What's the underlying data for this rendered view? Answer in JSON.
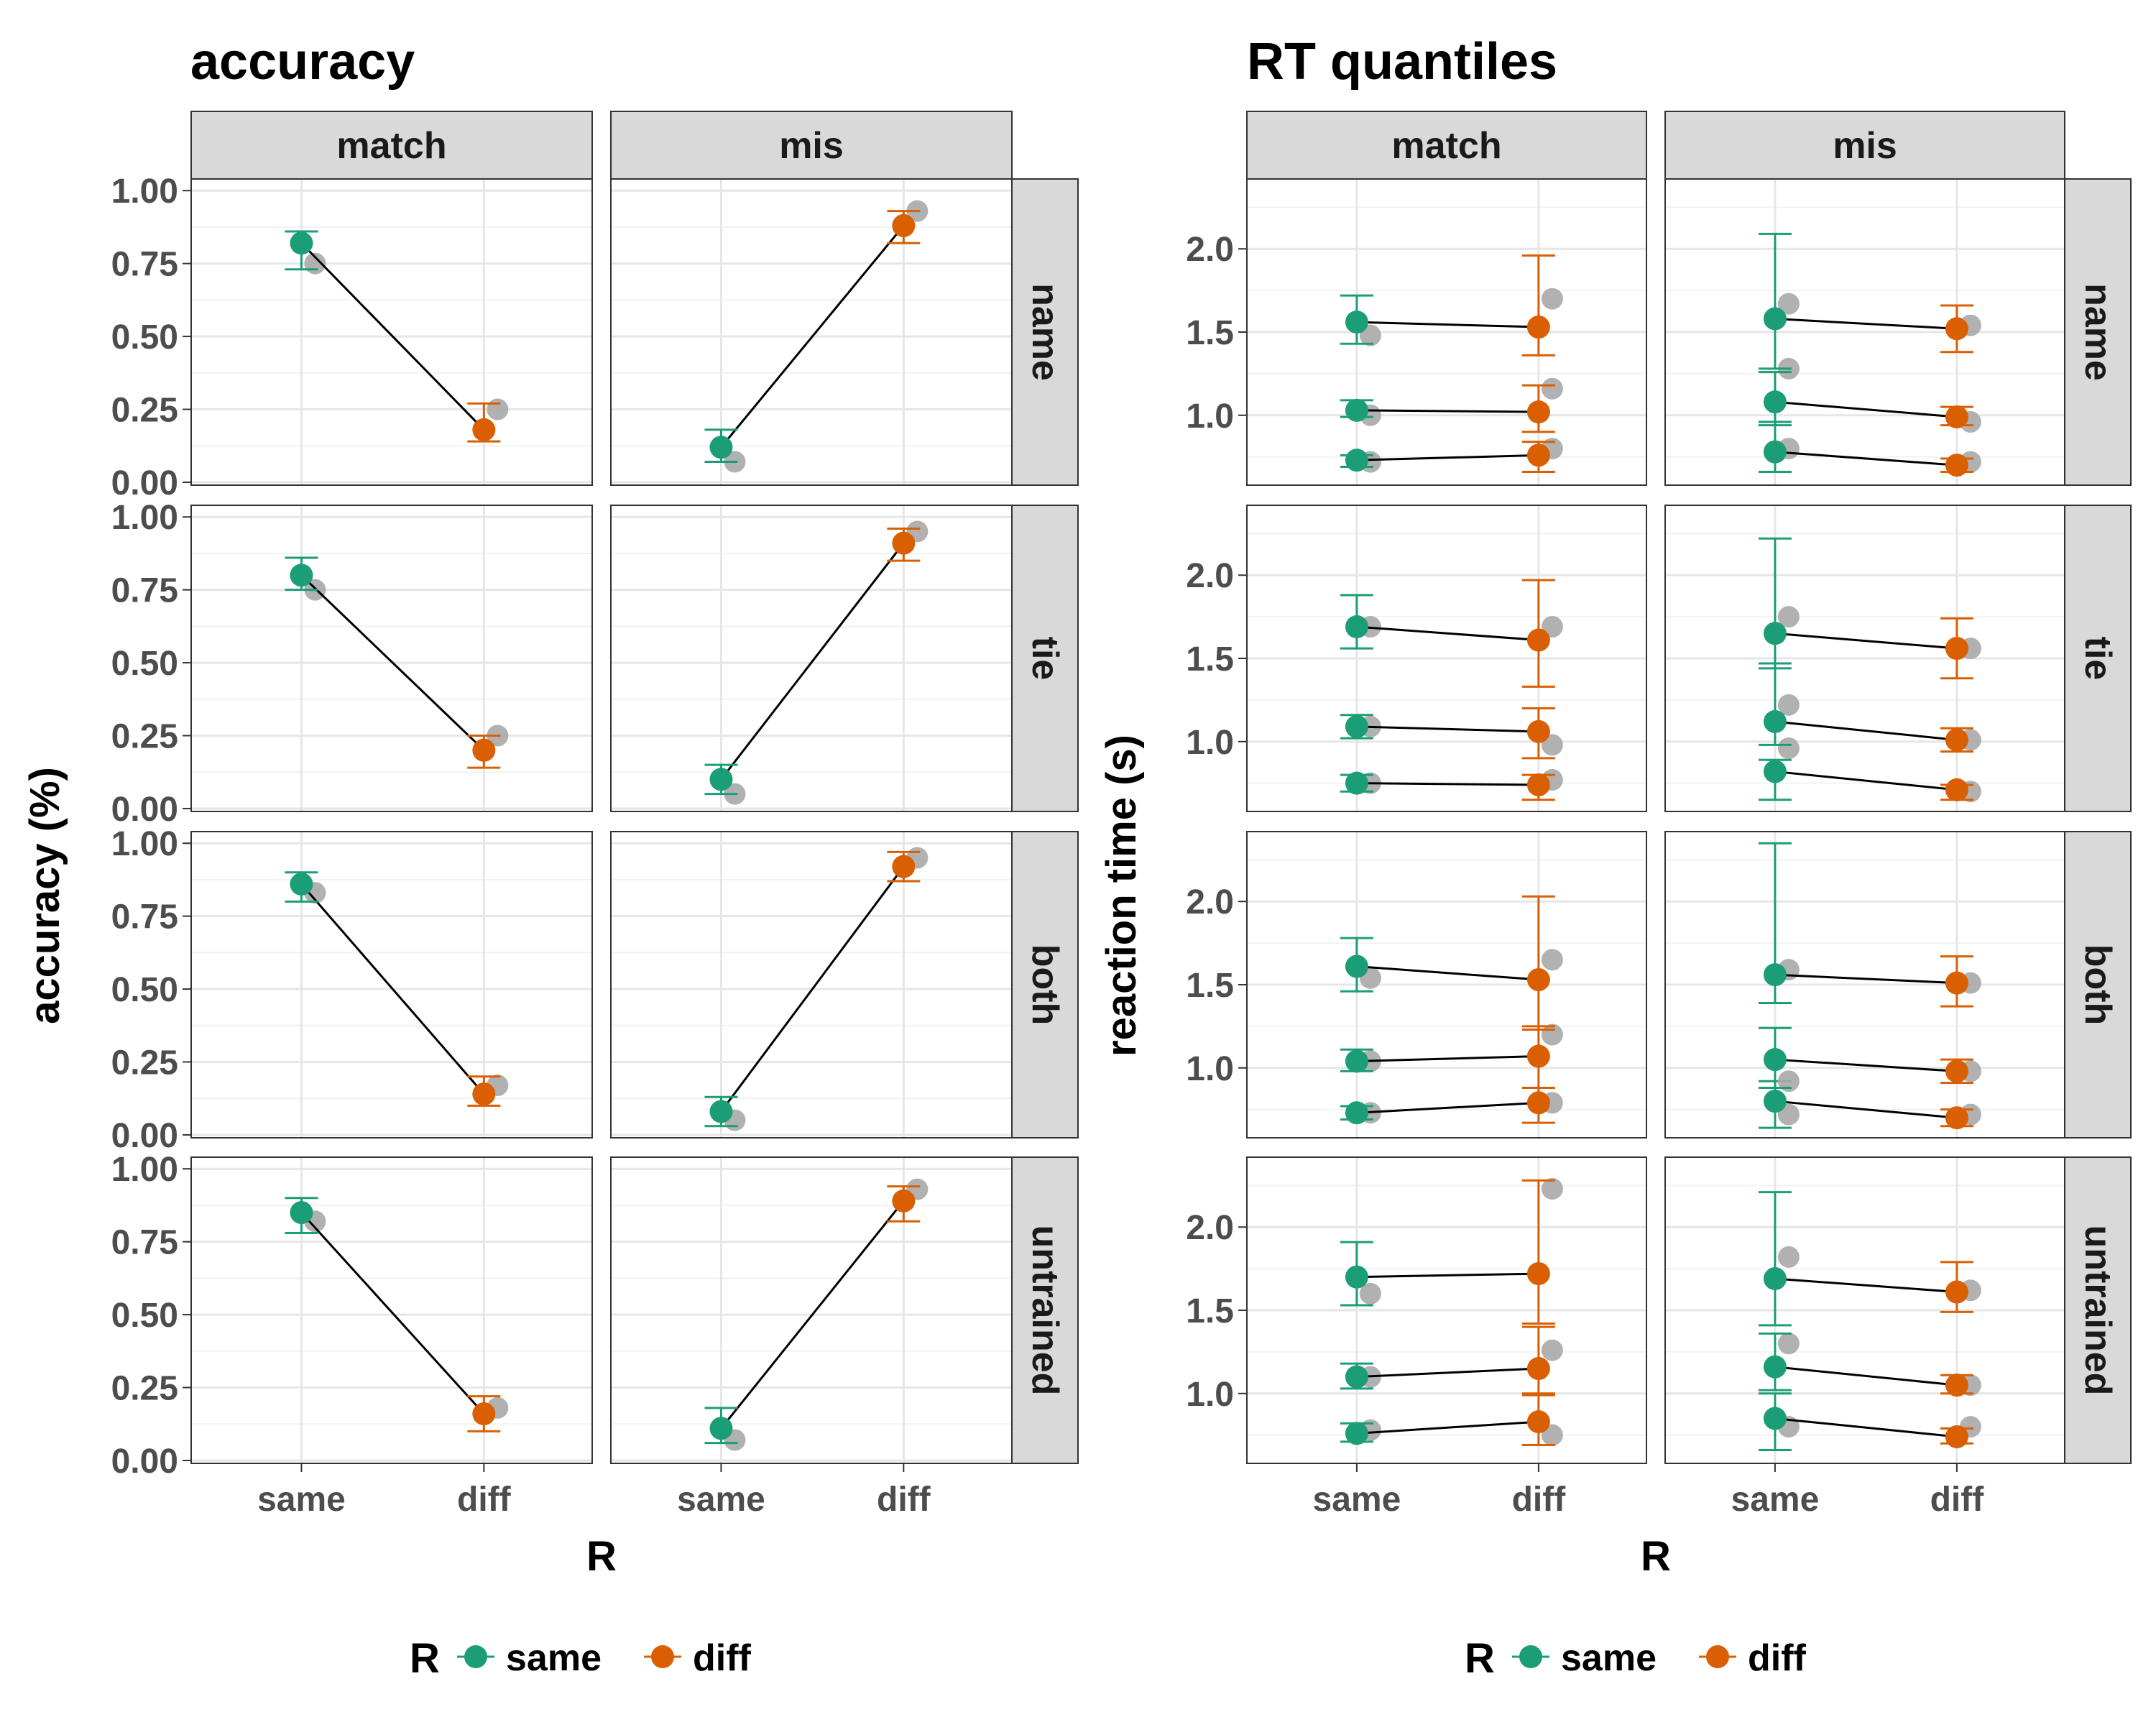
{
  "chart_data": [
    {
      "type": "line",
      "title": "accuracy",
      "xlabel": "R",
      "ylabel": "accuracy (%)",
      "x": [
        "same",
        "diff"
      ],
      "ylim": [
        -0.01,
        1.04
      ],
      "yticks": [
        "0.00",
        "0.25",
        "0.50",
        "0.75",
        "1.00"
      ],
      "ytick_values": [
        0,
        0.25,
        0.5,
        0.75,
        1.0
      ],
      "grid": true,
      "facet_cols": [
        "match",
        "mis"
      ],
      "facet_rows": [
        "name",
        "tie",
        "both",
        "untrained"
      ],
      "legend": {
        "title": "R",
        "position": "bottom",
        "items": [
          {
            "label": "same",
            "color": "#1b9e77"
          },
          {
            "label": "diff",
            "color": "#d95f02"
          }
        ]
      },
      "panels": [
        {
          "row": "name",
          "col": "match",
          "lines": [
            {
              "points": [
                [
                  0.82,
                  0.73,
                  0.86
                ],
                [
                  0.18,
                  0.14,
                  0.27
                ]
              ],
              "gray": [
                0.75,
                0.25
              ]
            }
          ]
        },
        {
          "row": "name",
          "col": "mis",
          "lines": [
            {
              "points": [
                [
                  0.12,
                  0.07,
                  0.18
                ],
                [
                  0.88,
                  0.82,
                  0.93
                ]
              ],
              "gray": [
                0.07,
                0.93
              ]
            }
          ]
        },
        {
          "row": "tie",
          "col": "match",
          "lines": [
            {
              "points": [
                [
                  0.8,
                  0.75,
                  0.86
                ],
                [
                  0.2,
                  0.14,
                  0.25
                ]
              ],
              "gray": [
                0.75,
                0.25
              ]
            }
          ]
        },
        {
          "row": "tie",
          "col": "mis",
          "lines": [
            {
              "points": [
                [
                  0.1,
                  0.05,
                  0.15
                ],
                [
                  0.91,
                  0.85,
                  0.96
                ]
              ],
              "gray": [
                0.05,
                0.95
              ]
            }
          ]
        },
        {
          "row": "both",
          "col": "match",
          "lines": [
            {
              "points": [
                [
                  0.86,
                  0.8,
                  0.9
                ],
                [
                  0.14,
                  0.1,
                  0.2
                ]
              ],
              "gray": [
                0.83,
                0.17
              ]
            }
          ]
        },
        {
          "row": "both",
          "col": "mis",
          "lines": [
            {
              "points": [
                [
                  0.08,
                  0.03,
                  0.13
                ],
                [
                  0.92,
                  0.87,
                  0.97
                ]
              ],
              "gray": [
                0.05,
                0.95
              ]
            }
          ]
        },
        {
          "row": "untrained",
          "col": "match",
          "lines": [
            {
              "points": [
                [
                  0.85,
                  0.78,
                  0.9
                ],
                [
                  0.16,
                  0.1,
                  0.22
                ]
              ],
              "gray": [
                0.82,
                0.18
              ]
            }
          ]
        },
        {
          "row": "untrained",
          "col": "mis",
          "lines": [
            {
              "points": [
                [
                  0.11,
                  0.06,
                  0.18
                ],
                [
                  0.89,
                  0.82,
                  0.94
                ]
              ],
              "gray": [
                0.07,
                0.93
              ]
            }
          ]
        }
      ]
    },
    {
      "type": "line",
      "title": "RT quantiles",
      "xlabel": "R",
      "ylabel": "reaction time (s)",
      "x": [
        "same",
        "diff"
      ],
      "ylim": [
        0.58,
        2.42
      ],
      "yticks": [
        "1.0",
        "1.5",
        "2.0"
      ],
      "ytick_values": [
        1.0,
        1.5,
        2.0
      ],
      "grid": true,
      "facet_cols": [
        "match",
        "mis"
      ],
      "facet_rows": [
        "name",
        "tie",
        "both",
        "untrained"
      ],
      "legend": {
        "title": "R",
        "position": "bottom",
        "items": [
          {
            "label": "same",
            "color": "#1b9e77"
          },
          {
            "label": "diff",
            "color": "#d95f02"
          }
        ]
      },
      "panels": [
        {
          "row": "name",
          "col": "match",
          "lines": [
            {
              "points": [
                [
                  0.73,
                  0.69,
                  0.76
                ],
                [
                  0.76,
                  0.66,
                  0.84
                ]
              ],
              "gray": [
                0.72,
                0.8
              ]
            },
            {
              "points": [
                [
                  1.03,
                  0.99,
                  1.09
                ],
                [
                  1.02,
                  0.9,
                  1.18
                ]
              ],
              "gray": [
                1.0,
                1.16
              ]
            },
            {
              "points": [
                [
                  1.56,
                  1.43,
                  1.72
                ],
                [
                  1.53,
                  1.36,
                  1.96
                ]
              ],
              "gray": [
                1.48,
                1.7
              ]
            }
          ]
        },
        {
          "row": "name",
          "col": "mis",
          "lines": [
            {
              "points": [
                [
                  0.78,
                  0.66,
                  0.96
                ],
                [
                  0.7,
                  0.66,
                  0.74
                ]
              ],
              "gray": [
                0.8,
                0.72
              ]
            },
            {
              "points": [
                [
                  1.08,
                  0.94,
                  1.26
                ],
                [
                  0.99,
                  0.94,
                  1.05
                ]
              ],
              "gray": [
                1.28,
                0.96
              ]
            },
            {
              "points": [
                [
                  1.58,
                  1.28,
                  2.09
                ],
                [
                  1.52,
                  1.38,
                  1.66
                ]
              ],
              "gray": [
                1.67,
                1.54
              ]
            }
          ]
        },
        {
          "row": "tie",
          "col": "match",
          "lines": [
            {
              "points": [
                [
                  0.75,
                  0.7,
                  0.8
                ],
                [
                  0.74,
                  0.65,
                  0.8
                ]
              ],
              "gray": [
                0.75,
                0.77
              ]
            },
            {
              "points": [
                [
                  1.09,
                  1.02,
                  1.16
                ],
                [
                  1.06,
                  0.9,
                  1.2
                ]
              ],
              "gray": [
                1.09,
                0.98
              ]
            },
            {
              "points": [
                [
                  1.69,
                  1.56,
                  1.88
                ],
                [
                  1.61,
                  1.33,
                  1.97
                ]
              ],
              "gray": [
                1.69,
                1.69
              ]
            }
          ]
        },
        {
          "row": "tie",
          "col": "mis",
          "lines": [
            {
              "points": [
                [
                  0.82,
                  0.65,
                  0.89
                ],
                [
                  0.71,
                  0.65,
                  0.74
                ]
              ],
              "gray": [
                0.96,
                0.7
              ]
            },
            {
              "points": [
                [
                  1.12,
                  0.98,
                  1.47
                ],
                [
                  1.01,
                  0.94,
                  1.08
                ]
              ],
              "gray": [
                1.22,
                1.01
              ]
            },
            {
              "points": [
                [
                  1.65,
                  1.44,
                  2.22
                ],
                [
                  1.56,
                  1.38,
                  1.74
                ]
              ],
              "gray": [
                1.75,
                1.56
              ]
            }
          ]
        },
        {
          "row": "both",
          "col": "match",
          "lines": [
            {
              "points": [
                [
                  0.73,
                  0.69,
                  0.77
                ],
                [
                  0.79,
                  0.67,
                  0.88
                ]
              ],
              "gray": [
                0.73,
                0.79
              ]
            },
            {
              "points": [
                [
                  1.04,
                  0.98,
                  1.11
                ],
                [
                  1.07,
                  0.88,
                  1.25
                ]
              ],
              "gray": [
                1.04,
                1.2
              ]
            },
            {
              "points": [
                [
                  1.61,
                  1.46,
                  1.78
                ],
                [
                  1.53,
                  1.23,
                  2.03
                ]
              ],
              "gray": [
                1.54,
                1.65
              ]
            }
          ]
        },
        {
          "row": "both",
          "col": "mis",
          "lines": [
            {
              "points": [
                [
                  0.8,
                  0.64,
                  0.92
                ],
                [
                  0.7,
                  0.65,
                  0.75
                ]
              ],
              "gray": [
                0.72,
                0.72
              ]
            },
            {
              "points": [
                [
                  1.05,
                  0.88,
                  1.24
                ],
                [
                  0.98,
                  0.91,
                  1.05
                ]
              ],
              "gray": [
                0.92,
                0.98
              ]
            },
            {
              "points": [
                [
                  1.56,
                  1.39,
                  2.35
                ],
                [
                  1.51,
                  1.37,
                  1.67
                ]
              ],
              "gray": [
                1.59,
                1.51
              ]
            }
          ]
        },
        {
          "row": "untrained",
          "col": "match",
          "lines": [
            {
              "points": [
                [
                  0.76,
                  0.71,
                  0.82
                ],
                [
                  0.83,
                  0.69,
                  1.0
                ]
              ],
              "gray": [
                0.78,
                0.75
              ]
            },
            {
              "points": [
                [
                  1.1,
                  1.03,
                  1.18
                ],
                [
                  1.15,
                  0.99,
                  1.4
                ]
              ],
              "gray": [
                1.1,
                1.26
              ]
            },
            {
              "points": [
                [
                  1.7,
                  1.53,
                  1.91
                ],
                [
                  1.72,
                  1.42,
                  2.28
                ]
              ],
              "gray": [
                1.6,
                2.23
              ]
            }
          ]
        },
        {
          "row": "untrained",
          "col": "mis",
          "lines": [
            {
              "points": [
                [
                  0.85,
                  0.66,
                  1.0
                ],
                [
                  0.74,
                  0.7,
                  0.79
                ]
              ],
              "gray": [
                0.8,
                0.8
              ]
            },
            {
              "points": [
                [
                  1.16,
                  1.02,
                  1.36
                ],
                [
                  1.05,
                  1.0,
                  1.11
                ]
              ],
              "gray": [
                1.3,
                1.05
              ]
            },
            {
              "points": [
                [
                  1.69,
                  1.41,
                  2.21
                ],
                [
                  1.61,
                  1.49,
                  1.79
                ]
              ],
              "gray": [
                1.82,
                1.62
              ]
            }
          ]
        }
      ]
    }
  ]
}
